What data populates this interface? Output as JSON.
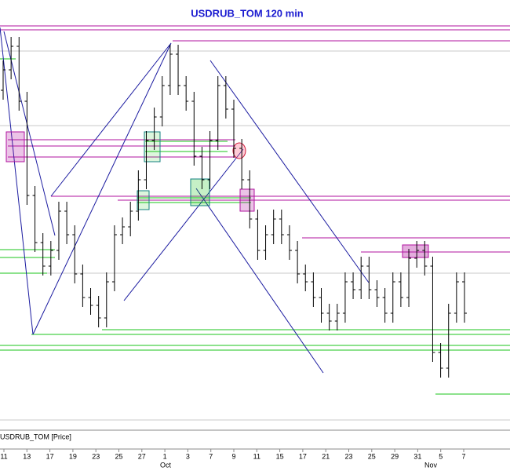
{
  "chart_data": {
    "type": "ohlc",
    "title": "USDRUB_TOM 120 min",
    "legend": "USDRUB_TOM [Price]",
    "xtick_labels": [
      "11",
      "13",
      "17",
      "19",
      "23",
      "25",
      "27",
      "1",
      "3",
      "7",
      "9",
      "11",
      "15",
      "17",
      "21",
      "23",
      "25",
      "29",
      "31",
      "5",
      "7"
    ],
    "month_labels": [
      "Oct",
      "Nov"
    ],
    "ylim": [
      63.2,
      65.7
    ],
    "color": "#000000",
    "open": [
      65.3,
      65.43,
      65.58,
      65.23,
      64.63,
      64.33,
      64.18,
      64.28,
      64.53,
      64.38,
      64.13,
      63.98,
      63.93,
      63.85,
      64.08,
      64.38,
      64.43,
      64.53,
      64.73,
      64.98,
      65.13,
      65.33,
      65.53,
      65.33,
      65.23,
      64.88,
      64.73,
      64.98,
      65.33,
      65.18,
      64.93,
      64.73,
      64.48,
      64.28,
      64.38,
      64.48,
      64.38,
      64.28,
      64.13,
      64.08,
      63.98,
      63.88,
      63.83,
      63.88,
      64.08,
      64.03,
      64.18,
      64.03,
      63.98,
      63.88,
      64.08,
      63.98,
      64.23,
      64.28,
      64.18,
      63.63,
      63.53,
      63.88,
      64.08
    ],
    "high": [
      65.49,
      65.64,
      65.64,
      65.29,
      64.69,
      64.39,
      64.34,
      64.59,
      64.59,
      64.44,
      64.19,
      64.04,
      63.99,
      64.14,
      64.44,
      64.49,
      64.59,
      64.79,
      65.04,
      65.19,
      65.39,
      65.59,
      65.59,
      65.39,
      65.29,
      64.94,
      65.04,
      65.39,
      65.39,
      65.24,
      64.99,
      64.79,
      64.54,
      64.44,
      64.54,
      64.54,
      64.44,
      64.34,
      64.19,
      64.14,
      64.04,
      63.94,
      63.94,
      64.14,
      64.14,
      64.24,
      64.24,
      64.09,
      64.04,
      64.14,
      64.14,
      64.29,
      64.34,
      64.34,
      64.24,
      63.69,
      63.94,
      64.14,
      64.14
    ],
    "low": [
      65.24,
      65.37,
      65.17,
      64.57,
      64.27,
      64.12,
      64.12,
      64.22,
      64.32,
      64.07,
      63.92,
      63.87,
      63.79,
      63.79,
      64.02,
      64.32,
      64.37,
      64.47,
      64.67,
      64.92,
      65.07,
      65.27,
      65.27,
      65.17,
      64.82,
      64.67,
      64.67,
      64.92,
      65.12,
      64.87,
      64.67,
      64.42,
      64.22,
      64.22,
      64.32,
      64.32,
      64.22,
      64.07,
      64.02,
      63.92,
      63.82,
      63.77,
      63.77,
      63.82,
      63.97,
      63.97,
      63.97,
      63.92,
      63.82,
      63.82,
      63.92,
      63.92,
      64.17,
      64.12,
      63.57,
      63.47,
      63.47,
      63.82,
      63.82
    ],
    "close": [
      65.43,
      65.58,
      65.23,
      64.63,
      64.33,
      64.18,
      64.28,
      64.53,
      64.38,
      64.13,
      63.98,
      63.93,
      63.85,
      64.08,
      64.38,
      64.43,
      64.53,
      64.73,
      64.98,
      65.13,
      65.33,
      65.53,
      65.33,
      65.23,
      64.88,
      64.73,
      64.98,
      65.33,
      65.18,
      64.93,
      64.73,
      64.48,
      64.28,
      64.38,
      64.48,
      64.38,
      64.28,
      64.13,
      64.08,
      63.98,
      63.88,
      63.83,
      63.88,
      64.08,
      64.03,
      64.18,
      64.03,
      63.98,
      63.88,
      64.08,
      63.98,
      64.23,
      64.28,
      64.18,
      63.63,
      63.53,
      63.88,
      64.08,
      63.88
    ]
  }
}
